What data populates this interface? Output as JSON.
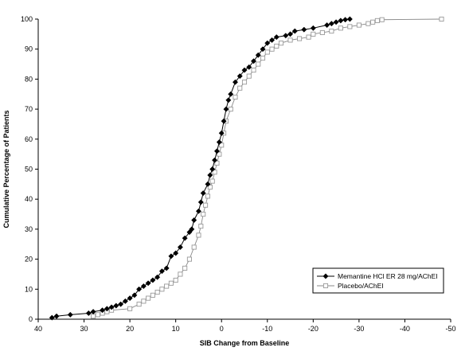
{
  "chart_data": {
    "type": "line",
    "title": "",
    "xlabel": "SIB Change from Baseline",
    "ylabel": "Cumulative Percentage of Patients",
    "xlim": [
      40,
      -50
    ],
    "ylim": [
      0,
      100
    ],
    "x_reversed": true,
    "x_ticks": [
      40,
      30,
      20,
      10,
      0,
      -10,
      -20,
      -30,
      -40,
      -50
    ],
    "x_tick_labels": [
      "40",
      "30",
      "20",
      "10",
      "0",
      "-10",
      "-20",
      "-30",
      "-40",
      "-50"
    ],
    "y_ticks": [
      0,
      10,
      20,
      30,
      40,
      50,
      60,
      70,
      80,
      90,
      100
    ],
    "y_tick_labels": [
      "0",
      "10",
      "20",
      "30",
      "40",
      "50",
      "60",
      "70",
      "80",
      "90",
      "100"
    ],
    "grid": false,
    "legend_position": "bottom-right",
    "series": [
      {
        "name": "Memantine HCl ER 28 mg/AChEI",
        "marker": "filled-diamond",
        "color": "#000000",
        "points": [
          [
            37,
            0.5
          ],
          [
            36,
            1
          ],
          [
            33,
            1.5
          ],
          [
            29,
            2
          ],
          [
            28,
            2.5
          ],
          [
            26,
            3
          ],
          [
            25,
            3.5
          ],
          [
            24,
            4
          ],
          [
            23,
            4.5
          ],
          [
            22,
            5
          ],
          [
            21,
            6
          ],
          [
            20,
            7
          ],
          [
            19,
            8
          ],
          [
            18,
            10
          ],
          [
            17,
            11
          ],
          [
            16,
            12
          ],
          [
            15,
            13
          ],
          [
            14,
            14
          ],
          [
            13,
            16
          ],
          [
            12,
            17
          ],
          [
            11,
            21
          ],
          [
            10,
            22
          ],
          [
            9,
            24
          ],
          [
            8,
            27
          ],
          [
            7,
            29
          ],
          [
            6.5,
            30
          ],
          [
            6,
            33
          ],
          [
            5,
            36
          ],
          [
            4.5,
            39
          ],
          [
            4,
            42
          ],
          [
            3,
            45
          ],
          [
            2.5,
            48
          ],
          [
            2,
            50
          ],
          [
            1.5,
            53
          ],
          [
            1,
            56
          ],
          [
            0.5,
            59
          ],
          [
            0,
            62
          ],
          [
            -0.5,
            66
          ],
          [
            -1,
            70
          ],
          [
            -1.5,
            73
          ],
          [
            -2,
            75
          ],
          [
            -3,
            79
          ],
          [
            -4,
            81
          ],
          [
            -5,
            83
          ],
          [
            -6,
            84
          ],
          [
            -7,
            86
          ],
          [
            -8,
            88
          ],
          [
            -9,
            90
          ],
          [
            -10,
            92
          ],
          [
            -11,
            93
          ],
          [
            -12,
            94
          ],
          [
            -14,
            94.5
          ],
          [
            -15,
            95
          ],
          [
            -16,
            96
          ],
          [
            -18,
            96.5
          ],
          [
            -20,
            97
          ],
          [
            -23,
            98
          ],
          [
            -24,
            98.5
          ],
          [
            -25,
            99
          ],
          [
            -26,
            99.5
          ],
          [
            -27,
            99.8
          ],
          [
            -28,
            100
          ]
        ]
      },
      {
        "name": "Placebo/AChEI",
        "marker": "open-square",
        "color": "#999999",
        "points": [
          [
            28,
            1
          ],
          [
            27,
            1.5
          ],
          [
            26,
            2
          ],
          [
            25,
            2.5
          ],
          [
            24,
            3
          ],
          [
            20,
            3.5
          ],
          [
            18,
            5
          ],
          [
            17,
            6
          ],
          [
            16,
            7
          ],
          [
            15,
            8
          ],
          [
            14,
            9
          ],
          [
            13,
            10
          ],
          [
            12,
            11
          ],
          [
            11,
            12
          ],
          [
            10,
            13
          ],
          [
            9,
            15
          ],
          [
            8,
            17
          ],
          [
            7,
            20
          ],
          [
            6,
            24
          ],
          [
            5,
            28
          ],
          [
            4.5,
            31
          ],
          [
            4,
            35
          ],
          [
            3.5,
            38
          ],
          [
            3,
            41
          ],
          [
            2.5,
            44
          ],
          [
            2,
            46
          ],
          [
            1.5,
            49
          ],
          [
            1,
            52
          ],
          [
            0.5,
            55
          ],
          [
            0,
            58
          ],
          [
            -0.5,
            62
          ],
          [
            -1,
            66
          ],
          [
            -2,
            70
          ],
          [
            -3,
            74
          ],
          [
            -4,
            77
          ],
          [
            -5,
            79
          ],
          [
            -6,
            81
          ],
          [
            -7,
            83
          ],
          [
            -8,
            85
          ],
          [
            -9,
            87
          ],
          [
            -10,
            89
          ],
          [
            -11,
            90
          ],
          [
            -12,
            91
          ],
          [
            -13,
            92
          ],
          [
            -15,
            93
          ],
          [
            -17,
            93.5
          ],
          [
            -19,
            94
          ],
          [
            -20,
            95
          ],
          [
            -22,
            95.5
          ],
          [
            -24,
            96
          ],
          [
            -26,
            97
          ],
          [
            -28,
            97.5
          ],
          [
            -30,
            98
          ],
          [
            -32,
            98.5
          ],
          [
            -33,
            99
          ],
          [
            -34,
            99.5
          ],
          [
            -35,
            99.8
          ],
          [
            -48,
            100
          ]
        ]
      }
    ]
  }
}
